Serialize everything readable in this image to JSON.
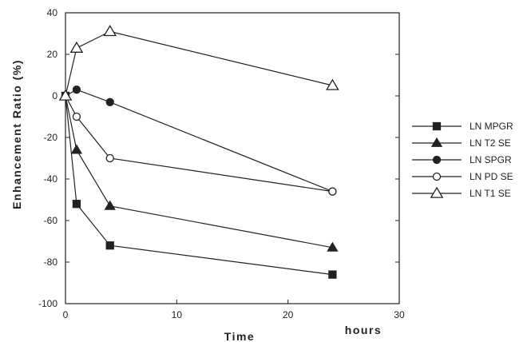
{
  "chart_data": {
    "type": "line",
    "xlabel": "Time",
    "xlabel_unit": "hours",
    "ylabel": "Enhancement  Ratio  (%)",
    "xlim": [
      0,
      30
    ],
    "ylim": [
      -100,
      40
    ],
    "x_ticks": [
      0,
      10,
      20,
      30
    ],
    "y_ticks": [
      40,
      20,
      0,
      -20,
      -40,
      -60,
      -80,
      -100
    ],
    "grid": false,
    "legend_position": "right",
    "series": [
      {
        "name": "LN MPGR",
        "marker": "square-filled",
        "x": [
          0,
          1,
          4,
          24
        ],
        "y": [
          0,
          -52,
          -72,
          -86
        ]
      },
      {
        "name": "LN T2 SE",
        "marker": "triangle-filled",
        "x": [
          0,
          1,
          4,
          24
        ],
        "y": [
          0,
          -26,
          -53,
          -73
        ]
      },
      {
        "name": "LN SPGR",
        "marker": "circle-filled",
        "x": [
          0,
          1,
          4,
          24
        ],
        "y": [
          0,
          3,
          -3,
          -46
        ]
      },
      {
        "name": "LN PD SE",
        "marker": "circle-open",
        "x": [
          0,
          1,
          4,
          24
        ],
        "y": [
          0,
          -10,
          -30,
          -46
        ]
      },
      {
        "name": "LN T1 SE",
        "marker": "triangle-open",
        "x": [
          0,
          1,
          4,
          24
        ],
        "y": [
          0,
          23,
          31,
          5
        ]
      }
    ]
  }
}
